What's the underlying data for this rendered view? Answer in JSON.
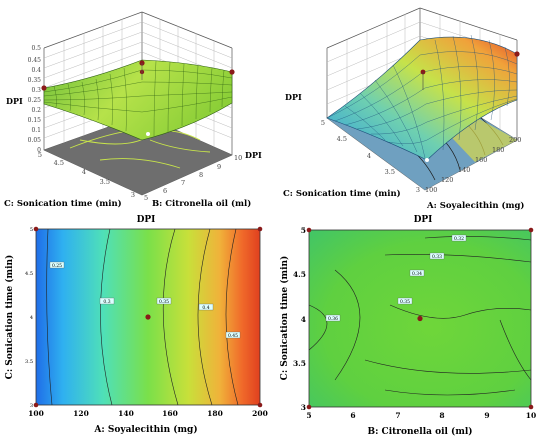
{
  "chart_data": [
    {
      "type": "surface3d",
      "title": "",
      "zlabel": "DPI",
      "zticks": [
        "0",
        "0.05",
        "0.1",
        "0.15",
        "0.2",
        "0.25",
        "0.3",
        "0.35",
        "0.4",
        "0.45",
        "0.5"
      ],
      "xlabel": "B: Citronella oil (ml)",
      "xticks": [
        "5",
        "6",
        "7",
        "8",
        "9",
        "10"
      ],
      "ylabel": "C: Sonication time (min)",
      "yticks": [
        "3",
        "3.5",
        "4",
        "4.5",
        "5"
      ],
      "floor_label": "DPI",
      "surface_color": "#8ecf3a",
      "floor_color": "#707070"
    },
    {
      "type": "surface3d",
      "title": "",
      "zlabel": "DPI",
      "xlabel": "A: Soyalecithin (mg)",
      "xticks": [
        "100",
        "120",
        "140",
        "160",
        "180",
        "200"
      ],
      "ylabel": "C: Sonication time (min)",
      "yticks": [
        "3",
        "3.5",
        "4",
        "4.5",
        "5"
      ],
      "surface_color_low": "#3ba8e0",
      "surface_color_high": "#e4552e"
    },
    {
      "type": "heatmap",
      "title": "DPI",
      "xlabel": "A: Soyalecithin (mg)",
      "ylabel": "C: Sonication time (min)",
      "xticks": [
        "100",
        "120",
        "140",
        "160",
        "180",
        "200"
      ],
      "yticks": [
        "3",
        "3.5",
        "4",
        "4.5",
        "5"
      ],
      "xlim": [
        100,
        200
      ],
      "ylim": [
        3,
        5
      ],
      "design_point": [
        150,
        4
      ],
      "contour_labels": [
        "0.25",
        "0.3",
        "0.35",
        "0.4",
        "0.45"
      ]
    },
    {
      "type": "heatmap",
      "title": "DPI",
      "xlabel": "B: Citronella oil (ml)",
      "ylabel": "C: Sonication time (min)",
      "xticks": [
        "5",
        "6",
        "7",
        "8",
        "9",
        "10"
      ],
      "yticks": [
        "3",
        "3.5",
        "4",
        "4.5",
        "5"
      ],
      "xlim": [
        5,
        10
      ],
      "ylim": [
        3,
        5
      ],
      "design_point": [
        7.5,
        4
      ],
      "contour_labels": [
        "0.32",
        "0.33",
        "0.34",
        "0.35",
        "0.36"
      ]
    }
  ]
}
